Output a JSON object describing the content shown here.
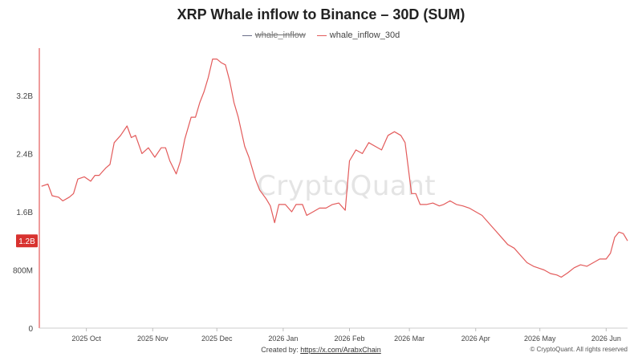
{
  "chart_data": {
    "type": "line",
    "title": "XRP Whale inflow to Binance – 30D (SUM)",
    "legend": [
      {
        "name": "whale_inflow",
        "color": "#6b6f8a",
        "hidden": true
      },
      {
        "name": "whale_inflow_30d",
        "color": "#e35b5b",
        "hidden": false
      }
    ],
    "y_ticks": [
      {
        "value": 0,
        "label": "0"
      },
      {
        "value": 800000000,
        "label": "800M"
      },
      {
        "value": 1600000000,
        "label": "1.6B"
      },
      {
        "value": 2400000000,
        "label": "2.4B"
      },
      {
        "value": 3200000000,
        "label": "3.2B"
      }
    ],
    "ylim": [
      0,
      3850000000
    ],
    "x_ticks": [
      {
        "date": "2025-10-01",
        "label": "2025 Oct"
      },
      {
        "date": "2025-11-01",
        "label": "2025 Nov"
      },
      {
        "date": "2025-12-01",
        "label": "2025 Dec"
      },
      {
        "date": "2026-01-01",
        "label": "2026 Jan"
      },
      {
        "date": "2026-02-01",
        "label": "2026 Feb"
      },
      {
        "date": "2026-03-01",
        "label": "2026 Mar"
      },
      {
        "date": "2026-04-01",
        "label": "2026 Apr"
      },
      {
        "date": "2026-05-01",
        "label": "2026 May"
      },
      {
        "date": "2026-06-01",
        "label": "2026 Jun"
      }
    ],
    "xlim": [
      "2025-09-09",
      "2026-06-11"
    ],
    "current_value_label": "1.2B",
    "series": [
      {
        "name": "whale_inflow_30d",
        "color": "#e35b5b",
        "points": [
          [
            "2025-09-10",
            1950000000
          ],
          [
            "2025-09-13",
            1980000000
          ],
          [
            "2025-09-15",
            1820000000
          ],
          [
            "2025-09-18",
            1800000000
          ],
          [
            "2025-09-20",
            1750000000
          ],
          [
            "2025-09-23",
            1800000000
          ],
          [
            "2025-09-25",
            1850000000
          ],
          [
            "2025-09-27",
            2050000000
          ],
          [
            "2025-09-30",
            2080000000
          ],
          [
            "2025-10-03",
            2020000000
          ],
          [
            "2025-10-05",
            2100000000
          ],
          [
            "2025-10-07",
            2100000000
          ],
          [
            "2025-10-10",
            2200000000
          ],
          [
            "2025-10-12",
            2250000000
          ],
          [
            "2025-10-14",
            2550000000
          ],
          [
            "2025-10-17",
            2650000000
          ],
          [
            "2025-10-20",
            2780000000
          ],
          [
            "2025-10-22",
            2620000000
          ],
          [
            "2025-10-24",
            2650000000
          ],
          [
            "2025-10-27",
            2400000000
          ],
          [
            "2025-10-30",
            2480000000
          ],
          [
            "2025-11-02",
            2350000000
          ],
          [
            "2025-11-05",
            2480000000
          ],
          [
            "2025-11-07",
            2480000000
          ],
          [
            "2025-11-09",
            2300000000
          ],
          [
            "2025-11-12",
            2120000000
          ],
          [
            "2025-11-14",
            2300000000
          ],
          [
            "2025-11-16",
            2600000000
          ],
          [
            "2025-11-19",
            2900000000
          ],
          [
            "2025-11-21",
            2900000000
          ],
          [
            "2025-11-23",
            3100000000
          ],
          [
            "2025-11-25",
            3250000000
          ],
          [
            "2025-11-27",
            3450000000
          ],
          [
            "2025-11-29",
            3700000000
          ],
          [
            "2025-12-01",
            3700000000
          ],
          [
            "2025-12-03",
            3650000000
          ],
          [
            "2025-12-05",
            3620000000
          ],
          [
            "2025-12-07",
            3400000000
          ],
          [
            "2025-12-09",
            3100000000
          ],
          [
            "2025-12-11",
            2900000000
          ],
          [
            "2025-12-14",
            2500000000
          ],
          [
            "2025-12-16",
            2350000000
          ],
          [
            "2025-12-19",
            2050000000
          ],
          [
            "2025-12-21",
            1900000000
          ],
          [
            "2025-12-24",
            1780000000
          ],
          [
            "2025-12-26",
            1680000000
          ],
          [
            "2025-12-28",
            1450000000
          ],
          [
            "2025-12-30",
            1700000000
          ],
          [
            "2026-01-02",
            1700000000
          ],
          [
            "2026-01-05",
            1600000000
          ],
          [
            "2026-01-07",
            1700000000
          ],
          [
            "2026-01-10",
            1700000000
          ],
          [
            "2026-01-12",
            1550000000
          ],
          [
            "2026-01-15",
            1600000000
          ],
          [
            "2026-01-18",
            1650000000
          ],
          [
            "2026-01-21",
            1650000000
          ],
          [
            "2026-01-24",
            1700000000
          ],
          [
            "2026-01-27",
            1720000000
          ],
          [
            "2026-01-30",
            1620000000
          ],
          [
            "2026-02-01",
            2300000000
          ],
          [
            "2026-02-04",
            2450000000
          ],
          [
            "2026-02-07",
            2400000000
          ],
          [
            "2026-02-10",
            2550000000
          ],
          [
            "2026-02-13",
            2500000000
          ],
          [
            "2026-02-16",
            2450000000
          ],
          [
            "2026-02-19",
            2650000000
          ],
          [
            "2026-02-22",
            2700000000
          ],
          [
            "2026-02-25",
            2650000000
          ],
          [
            "2026-02-27",
            2550000000
          ],
          [
            "2026-03-02",
            1850000000
          ],
          [
            "2026-03-04",
            1850000000
          ],
          [
            "2026-03-06",
            1700000000
          ],
          [
            "2026-03-09",
            1700000000
          ],
          [
            "2026-03-12",
            1720000000
          ],
          [
            "2026-03-15",
            1680000000
          ],
          [
            "2026-03-17",
            1700000000
          ],
          [
            "2026-03-20",
            1750000000
          ],
          [
            "2026-03-23",
            1700000000
          ],
          [
            "2026-03-26",
            1680000000
          ],
          [
            "2026-03-29",
            1650000000
          ],
          [
            "2026-04-01",
            1600000000
          ],
          [
            "2026-04-04",
            1550000000
          ],
          [
            "2026-04-07",
            1450000000
          ],
          [
            "2026-04-10",
            1350000000
          ],
          [
            "2026-04-13",
            1250000000
          ],
          [
            "2026-04-16",
            1150000000
          ],
          [
            "2026-04-19",
            1100000000
          ],
          [
            "2026-04-22",
            1000000000
          ],
          [
            "2026-04-25",
            900000000
          ],
          [
            "2026-04-28",
            850000000
          ],
          [
            "2026-05-01",
            820000000
          ],
          [
            "2026-05-03",
            800000000
          ],
          [
            "2026-05-06",
            750000000
          ],
          [
            "2026-05-09",
            730000000
          ],
          [
            "2026-05-11",
            700000000
          ],
          [
            "2026-05-14",
            760000000
          ],
          [
            "2026-05-17",
            830000000
          ],
          [
            "2026-05-20",
            870000000
          ],
          [
            "2026-05-23",
            850000000
          ],
          [
            "2026-05-26",
            900000000
          ],
          [
            "2026-05-29",
            950000000
          ],
          [
            "2026-06-01",
            950000000
          ],
          [
            "2026-06-03",
            1030000000
          ],
          [
            "2026-06-05",
            1250000000
          ],
          [
            "2026-06-07",
            1320000000
          ],
          [
            "2026-06-09",
            1300000000
          ],
          [
            "2026-06-11",
            1200000000
          ]
        ]
      }
    ]
  },
  "footer": {
    "created_by_label": "Created by: ",
    "created_by_link": "https://x.com/ArabxChain",
    "copyright": "© CryptoQuant. All rights reserved"
  },
  "watermark": "CryptoQuant"
}
